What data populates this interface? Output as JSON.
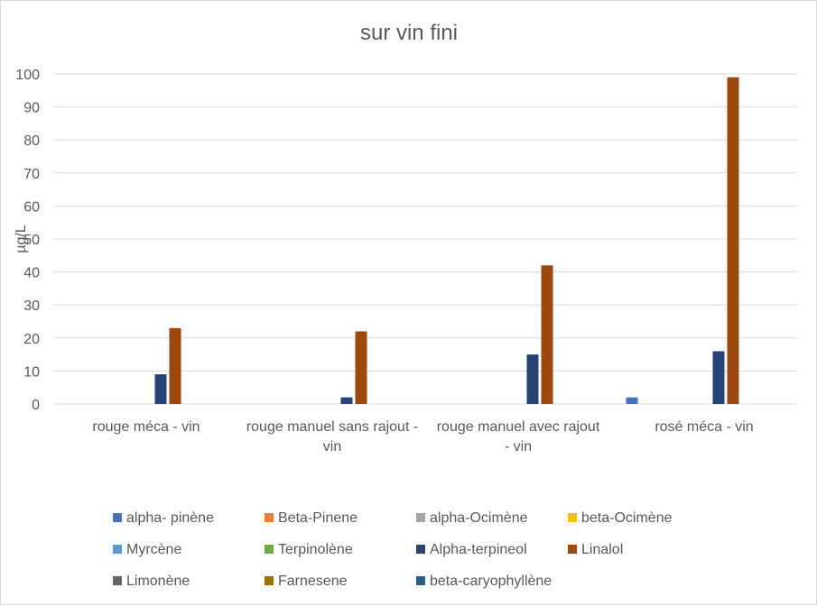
{
  "chart_data": {
    "type": "bar",
    "title": "sur vin fini",
    "xlabel": "",
    "ylabel": "µg/L",
    "ylim": [
      0,
      100
    ],
    "y_ticks": [
      0,
      10,
      20,
      30,
      40,
      50,
      60,
      70,
      80,
      90,
      100
    ],
    "grid": "horizontal",
    "legend_placement": "bottom",
    "categories": [
      [
        "rouge méca - vin"
      ],
      [
        "rouge manuel sans rajout -",
        "vin"
      ],
      [
        "rouge manuel avec rajout",
        "- vin"
      ],
      [
        "rosé méca - vin"
      ]
    ],
    "series": [
      {
        "name": "alpha- pinène",
        "color": "#4472c4",
        "values": [
          0,
          0,
          0,
          2
        ]
      },
      {
        "name": "Beta-Pinene",
        "color": "#ed7d31",
        "values": [
          0,
          0,
          0,
          0
        ]
      },
      {
        "name": "alpha-Ocimène",
        "color": "#a5a5a5",
        "values": [
          0,
          0,
          0,
          0
        ]
      },
      {
        "name": "beta-Ocimène",
        "color": "#ffc000",
        "values": [
          0,
          0,
          0,
          0
        ]
      },
      {
        "name": "Myrcène",
        "color": "#5b9bd5",
        "values": [
          0,
          0,
          0,
          0
        ]
      },
      {
        "name": "Terpinolène",
        "color": "#70ad47",
        "values": [
          0,
          0,
          0,
          0
        ]
      },
      {
        "name": "Alpha-terpineol",
        "color": "#264478",
        "values": [
          9,
          2,
          15,
          16
        ]
      },
      {
        "name": "Linalol",
        "color": "#9e480e",
        "values": [
          23,
          22,
          42,
          99
        ]
      },
      {
        "name": "Limonène",
        "color": "#636363",
        "values": [
          0,
          0,
          0,
          0
        ]
      },
      {
        "name": "Farnesene",
        "color": "#997300",
        "values": [
          0,
          0,
          0,
          0
        ]
      },
      {
        "name": "beta-caryophyllène",
        "color": "#255e91",
        "values": [
          0,
          0,
          0,
          0
        ]
      }
    ]
  }
}
